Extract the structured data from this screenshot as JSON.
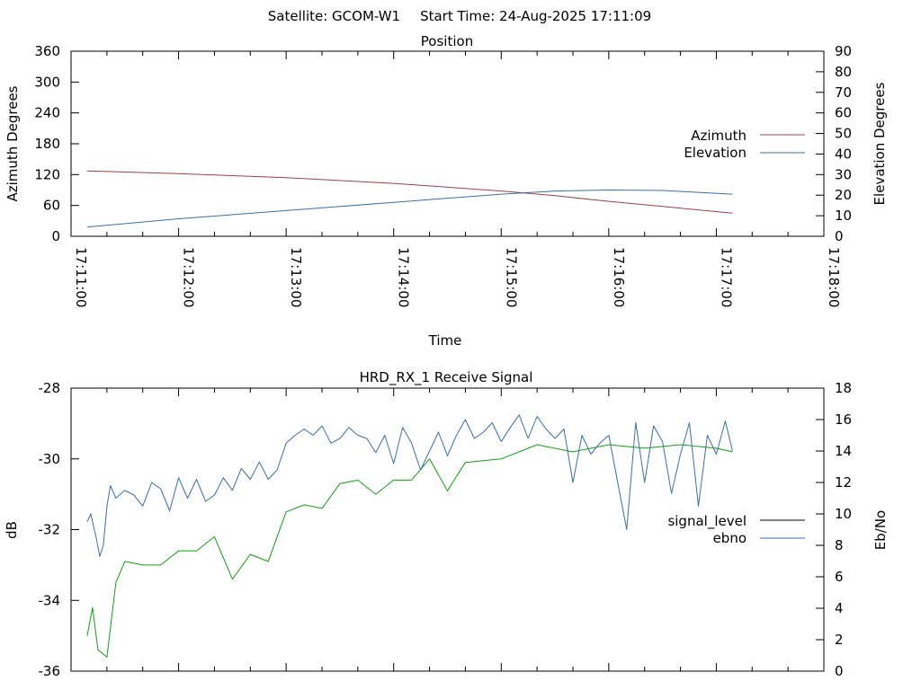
{
  "header": {
    "satellite_label": "Satellite: GCOM-W1",
    "start_label": "Start Time: 24-Aug-2025 17:11:09"
  },
  "colors": {
    "azimuth": "#a0404a",
    "elevation": "#3c6ea8",
    "signal_level": "#11a011",
    "ebno": "#3c6ea8",
    "axis": "#000000",
    "legend_signal_level_key": "#000000"
  },
  "chart_data": [
    {
      "type": "line",
      "title": "Position",
      "xlabel": "Time",
      "ylabel": "Azimuth Degrees",
      "y2label": "Elevation Degrees",
      "x_ticks": [
        "17:11:00",
        "17:12:00",
        "17:13:00",
        "17:14:00",
        "17:15:00",
        "17:16:00",
        "17:17:00",
        "17:18:00"
      ],
      "xlim_seconds_after_17_11_00": [
        0,
        420
      ],
      "ylim": [
        0,
        360
      ],
      "y_ticks": [
        0,
        60,
        120,
        180,
        240,
        300,
        360
      ],
      "y2lim": [
        0,
        90
      ],
      "y2_ticks": [
        0,
        10,
        20,
        30,
        40,
        50,
        60,
        70,
        80,
        90
      ],
      "legend_position": "right",
      "series": [
        {
          "name": "Azimuth",
          "axis": "y",
          "x": [
            9,
            60,
            120,
            180,
            240,
            270,
            300,
            330,
            369
          ],
          "values": [
            127,
            122,
            114,
            103,
            88,
            79,
            68,
            58,
            45
          ]
        },
        {
          "name": "Elevation",
          "axis": "y2",
          "x": [
            9,
            60,
            120,
            180,
            240,
            270,
            300,
            330,
            369
          ],
          "values": [
            4.5,
            8.5,
            12.5,
            16.5,
            20.5,
            22.0,
            22.5,
            22.3,
            20.5
          ]
        }
      ]
    },
    {
      "type": "line",
      "title": "HRD_RX_1 Receive Signal",
      "ylabel": "dB",
      "y2label": "Eb/No",
      "xlim_seconds_after_17_11_00": [
        0,
        420
      ],
      "ylim": [
        -36,
        -28
      ],
      "y_ticks": [
        -36,
        -34,
        -32,
        -30,
        -28
      ],
      "y2lim": [
        0,
        18
      ],
      "y2_ticks": [
        0,
        2,
        4,
        6,
        8,
        10,
        12,
        14,
        16,
        18
      ],
      "legend_position": "right",
      "series": [
        {
          "name": "signal_level",
          "axis": "y",
          "x": [
            9,
            12,
            15,
            20,
            25,
            30,
            40,
            50,
            60,
            70,
            80,
            90,
            100,
            110,
            120,
            130,
            140,
            150,
            160,
            170,
            180,
            190,
            200,
            210,
            220,
            240,
            260,
            280,
            300,
            320,
            340,
            360,
            369
          ],
          "values": [
            -35.0,
            -34.2,
            -35.4,
            -35.6,
            -33.5,
            -32.9,
            -33.0,
            -33.0,
            -32.6,
            -32.6,
            -32.2,
            -33.4,
            -32.7,
            -32.9,
            -31.5,
            -31.3,
            -31.4,
            -30.7,
            -30.6,
            -31.0,
            -30.6,
            -30.6,
            -30.0,
            -30.9,
            -30.1,
            -30.0,
            -29.6,
            -29.8,
            -29.6,
            -29.7,
            -29.6,
            -29.7,
            -29.8
          ]
        },
        {
          "name": "ebno",
          "axis": "y2",
          "x": [
            9,
            11,
            14,
            16,
            18,
            20,
            22,
            25,
            30,
            35,
            40,
            45,
            50,
            55,
            60,
            65,
            70,
            75,
            80,
            85,
            90,
            95,
            100,
            105,
            110,
            115,
            120,
            125,
            130,
            135,
            140,
            145,
            150,
            155,
            160,
            165,
            170,
            175,
            180,
            185,
            190,
            195,
            200,
            205,
            210,
            215,
            220,
            225,
            230,
            235,
            240,
            245,
            250,
            255,
            260,
            265,
            270,
            275,
            280,
            285,
            290,
            295,
            300,
            305,
            310,
            315,
            320,
            325,
            330,
            335,
            340,
            345,
            350,
            355,
            360,
            365,
            369
          ],
          "values": [
            9.5,
            10.0,
            8.5,
            7.3,
            8.0,
            10.5,
            11.8,
            11.0,
            11.5,
            11.2,
            10.5,
            12.0,
            11.6,
            10.2,
            12.3,
            11.0,
            12.2,
            10.8,
            11.2,
            12.3,
            11.5,
            12.9,
            12.2,
            13.3,
            12.2,
            12.8,
            14.5,
            15.0,
            15.4,
            15.0,
            15.6,
            14.5,
            14.8,
            15.5,
            15.0,
            14.8,
            13.9,
            15.0,
            13.2,
            15.5,
            14.5,
            12.8,
            14.0,
            15.2,
            13.7,
            15.0,
            16.0,
            14.8,
            15.2,
            15.8,
            14.6,
            15.5,
            16.3,
            14.8,
            16.2,
            15.4,
            14.8,
            15.4,
            12.0,
            15.0,
            13.8,
            14.5,
            15.0,
            12.0,
            9.0,
            15.8,
            12.0,
            15.6,
            14.6,
            11.3,
            13.8,
            15.8,
            10.5,
            15.0,
            13.8,
            15.9,
            14.0
          ]
        }
      ]
    }
  ]
}
